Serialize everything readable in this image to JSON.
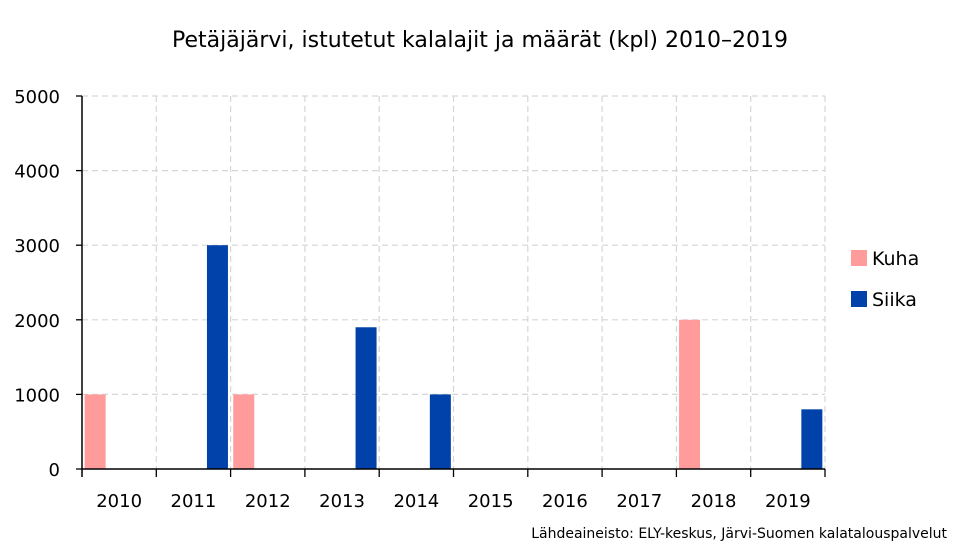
{
  "chart_data": {
    "type": "bar",
    "title": "Petäjäjärvi, istutetut kalalajit ja määrät (kpl) 2010–2019",
    "categories": [
      "2010",
      "2011",
      "2012",
      "2013",
      "2014",
      "2015",
      "2016",
      "2017",
      "2018",
      "2019"
    ],
    "series": [
      {
        "name": "Kuha",
        "color": "#ff9b9b",
        "values": [
          1000,
          0,
          1000,
          0,
          0,
          0,
          0,
          0,
          2000,
          0
        ]
      },
      {
        "name": "Siika",
        "color": "#0041aa",
        "values": [
          0,
          3000,
          0,
          1900,
          1000,
          0,
          0,
          0,
          0,
          800
        ]
      }
    ],
    "ylim": [
      0,
      5000
    ],
    "yticks": [
      "0",
      "1000",
      "2000",
      "3000",
      "4000",
      "5000"
    ],
    "grid": true,
    "legend_position": "right",
    "source": "Lähdeaineisto: ELY-keskus, Järvi-Suomen kalatalouspalvelut"
  }
}
